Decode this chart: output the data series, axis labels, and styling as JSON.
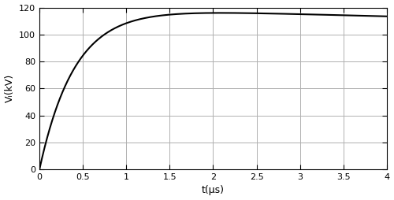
{
  "title": "",
  "xlabel": "t(μs)",
  "ylabel": "Vᵢ(kV)",
  "xlim": [
    0,
    4
  ],
  "ylim": [
    0,
    120
  ],
  "xticks": [
    0,
    0.5,
    1,
    1.5,
    2,
    2.5,
    3,
    3.5,
    4
  ],
  "yticks": [
    0,
    20,
    40,
    60,
    80,
    100,
    120
  ],
  "line_color": "#000000",
  "line_width": 1.5,
  "grid_color": "#b0b0b0",
  "grid_alpha": 1.0,
  "background_color": "#ffffff",
  "peak_kV": 116.0,
  "alpha1": 0.0147,
  "alpha2": 2.467,
  "figsize": [
    5.0,
    2.54
  ],
  "dpi": 100
}
